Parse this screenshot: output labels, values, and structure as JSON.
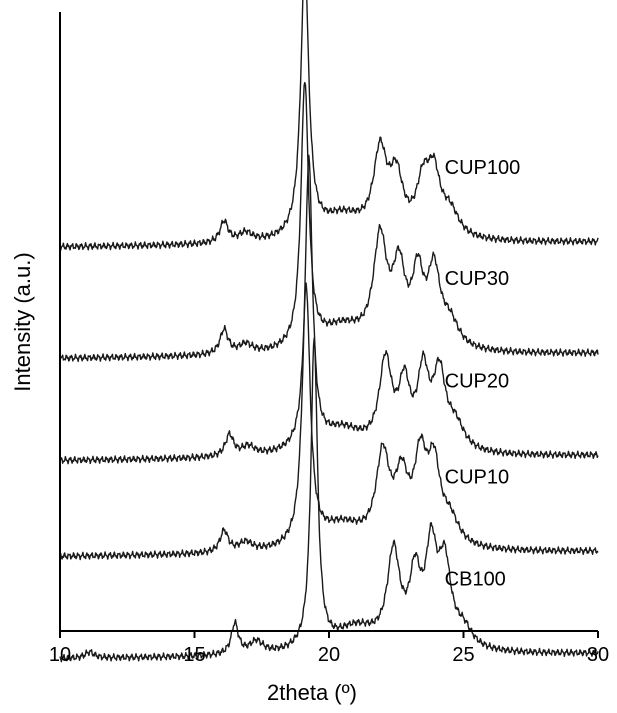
{
  "chart_data": {
    "type": "line",
    "xlabel": "2theta (º)",
    "ylabel": "Intensity (a.u.)",
    "xlim": [
      10,
      30
    ],
    "x_ticks": [
      10,
      15,
      20,
      25,
      30
    ],
    "y_tick_labels": false,
    "grid": false,
    "legend": "none (series labels placed beside each curve)",
    "series": [
      {
        "name": "CUP100",
        "baseline": 0.62,
        "noise_phase": 1.3,
        "peaks": [
          [
            16.1,
            0.035,
            0.18
          ],
          [
            16.9,
            0.015,
            0.3
          ],
          [
            19.1,
            0.44,
            0.18
          ],
          [
            20.5,
            0.04,
            1.0
          ],
          [
            21.9,
            0.13,
            0.3
          ],
          [
            22.5,
            0.09,
            0.3
          ],
          [
            23.5,
            0.08,
            0.3
          ],
          [
            23.9,
            0.09,
            0.28
          ],
          [
            24.5,
            0.04,
            0.4
          ]
        ]
      },
      {
        "name": "CUP30",
        "baseline": 0.44,
        "noise_phase": 2.7,
        "peaks": [
          [
            16.1,
            0.04,
            0.18
          ],
          [
            16.9,
            0.015,
            0.3
          ],
          [
            19.1,
            0.43,
            0.17
          ],
          [
            20.5,
            0.04,
            1.0
          ],
          [
            21.9,
            0.17,
            0.3
          ],
          [
            22.6,
            0.12,
            0.28
          ],
          [
            23.3,
            0.11,
            0.25
          ],
          [
            23.9,
            0.12,
            0.28
          ],
          [
            24.5,
            0.04,
            0.4
          ]
        ]
      },
      {
        "name": "CUP20",
        "baseline": 0.275,
        "noise_phase": 4.1,
        "peaks": [
          [
            16.3,
            0.035,
            0.18
          ],
          [
            17.0,
            0.015,
            0.3
          ],
          [
            19.25,
            0.47,
            0.16
          ],
          [
            20.5,
            0.04,
            1.0
          ],
          [
            22.1,
            0.14,
            0.28
          ],
          [
            22.8,
            0.1,
            0.25
          ],
          [
            23.5,
            0.12,
            0.25
          ],
          [
            24.1,
            0.12,
            0.28
          ],
          [
            24.7,
            0.04,
            0.4
          ]
        ]
      },
      {
        "name": "CUP10",
        "baseline": 0.12,
        "noise_phase": 5.6,
        "peaks": [
          [
            16.1,
            0.035,
            0.18
          ],
          [
            16.9,
            0.015,
            0.3
          ],
          [
            19.15,
            0.42,
            0.18
          ],
          [
            20.5,
            0.04,
            1.0
          ],
          [
            22.0,
            0.14,
            0.3
          ],
          [
            22.7,
            0.1,
            0.3
          ],
          [
            23.4,
            0.13,
            0.28
          ],
          [
            23.9,
            0.12,
            0.28
          ],
          [
            24.5,
            0.04,
            0.4
          ]
        ]
      },
      {
        "name": "CB100",
        "baseline": -0.045,
        "noise_phase": 0.4,
        "peaks": [
          [
            11.1,
            0.01,
            0.2
          ],
          [
            16.5,
            0.05,
            0.16
          ],
          [
            17.3,
            0.02,
            0.3
          ],
          [
            19.45,
            0.5,
            0.15
          ],
          [
            21.0,
            0.04,
            1.0
          ],
          [
            22.4,
            0.15,
            0.28
          ],
          [
            23.2,
            0.11,
            0.25
          ],
          [
            23.8,
            0.15,
            0.25
          ],
          [
            24.3,
            0.13,
            0.28
          ],
          [
            25.0,
            0.03,
            0.4
          ]
        ]
      }
    ]
  }
}
